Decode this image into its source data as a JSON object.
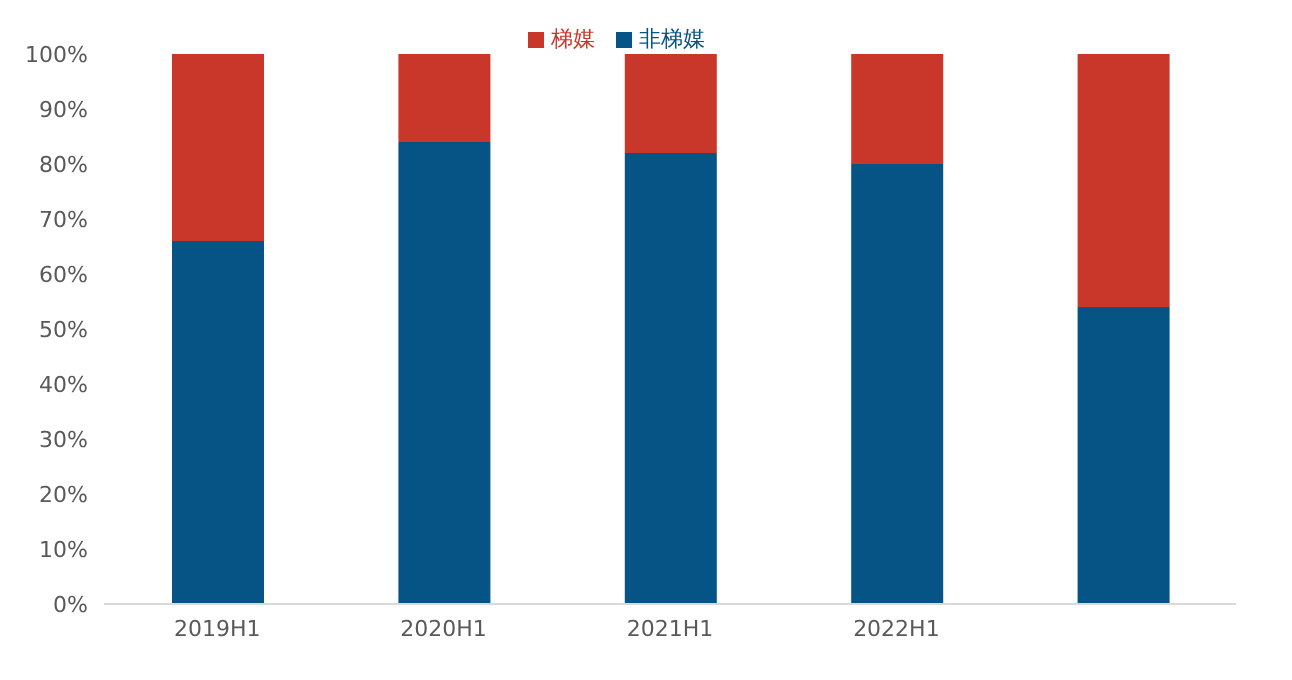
{
  "chart_data": {
    "type": "bar",
    "stacked": true,
    "categories": [
      "2019H1",
      "2020H1",
      "2021H1",
      "2022H1",
      null
    ],
    "series": [
      {
        "name": "非梯媒",
        "color": "#065386",
        "values": [
          66,
          84,
          82,
          80,
          54
        ]
      },
      {
        "name": "梯媒",
        "color": "#c9372a",
        "values": [
          34,
          16,
          18,
          20,
          46
        ]
      }
    ],
    "ylim": [
      0,
      100
    ],
    "yticks": [
      {
        "value": 0,
        "label": "0%"
      },
      {
        "value": 10,
        "label": "10%"
      },
      {
        "value": 20,
        "label": "20%"
      },
      {
        "value": 30,
        "label": "30%"
      },
      {
        "value": 40,
        "label": "40%"
      },
      {
        "value": 50,
        "label": "50%"
      },
      {
        "value": 60,
        "label": "60%"
      },
      {
        "value": 70,
        "label": "70%"
      },
      {
        "value": 80,
        "label": "80%"
      },
      {
        "value": 90,
        "label": "90%"
      },
      {
        "value": 100,
        "label": "100%"
      }
    ],
    "grid": false,
    "legend": "top"
  }
}
